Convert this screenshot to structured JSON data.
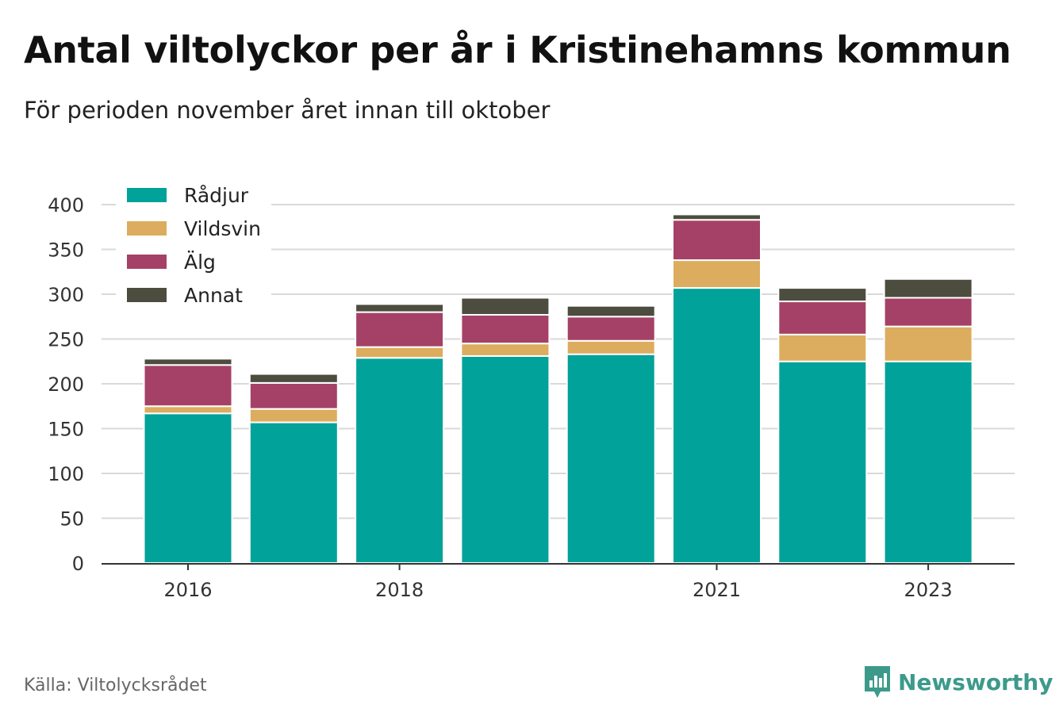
{
  "title": "Antal viltolyckor per år i Kristinehamns kommun",
  "subtitle": "För perioden november året innan till oktober",
  "source": "Källa: Viltolycksrådet",
  "brand": "Newsworthy",
  "colors": {
    "radjur": "#00a29a",
    "vildsvin": "#dcad5e",
    "alg": "#a54166",
    "annat": "#4c4d3f",
    "grid": "#d9d9d9",
    "axis": "#333333",
    "brand": "#3c9a8b"
  },
  "chart_data": {
    "type": "bar",
    "stacked": true,
    "categories": [
      "2016",
      "2017",
      "2018",
      "2019",
      "2020",
      "2021",
      "2022",
      "2023"
    ],
    "x_tick_labels": [
      "2016",
      "",
      "2018",
      "",
      "",
      "2021",
      "",
      "2023"
    ],
    "series": [
      {
        "name": "Rådjur",
        "color": "#00a29a",
        "values": [
          167,
          157,
          229,
          231,
          233,
          307,
          225,
          225
        ]
      },
      {
        "name": "Vildsvin",
        "color": "#dcad5e",
        "values": [
          8,
          15,
          12,
          14,
          15,
          31,
          30,
          39
        ]
      },
      {
        "name": "Älg",
        "color": "#a54166",
        "values": [
          46,
          29,
          39,
          32,
          27,
          45,
          37,
          32
        ]
      },
      {
        "name": "Annat",
        "color": "#4c4d3f",
        "values": [
          7,
          10,
          9,
          19,
          12,
          6,
          15,
          21
        ]
      }
    ],
    "ylim": [
      0,
      400
    ],
    "yticks": [
      0,
      50,
      100,
      150,
      200,
      250,
      300,
      350,
      400
    ],
    "grid": true,
    "legend": "top-left",
    "xlabel": "",
    "ylabel": ""
  }
}
